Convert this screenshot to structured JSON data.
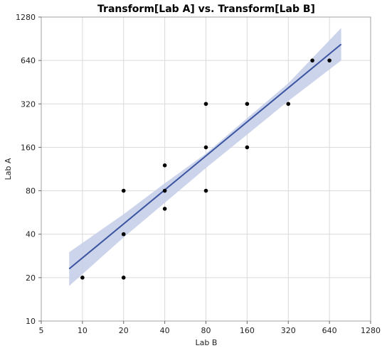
{
  "chart_data": {
    "type": "scatter",
    "title": "Transform[Lab A] vs. Transform[Lab B]",
    "xlabel": "Lab B",
    "ylabel": "Lab A",
    "x_scale": "log2",
    "y_scale": "log2",
    "xlim": [
      5,
      1280
    ],
    "ylim": [
      10,
      1280
    ],
    "x_ticks": [
      5,
      10,
      20,
      40,
      80,
      160,
      320,
      640,
      1280
    ],
    "y_ticks": [
      10,
      20,
      40,
      80,
      160,
      320,
      640,
      1280
    ],
    "grid": true,
    "points": [
      {
        "x": 10,
        "y": 20
      },
      {
        "x": 20,
        "y": 20
      },
      {
        "x": 20,
        "y": 40
      },
      {
        "x": 20,
        "y": 80
      },
      {
        "x": 40,
        "y": 60
      },
      {
        "x": 40,
        "y": 80
      },
      {
        "x": 40,
        "y": 120
      },
      {
        "x": 80,
        "y": 80
      },
      {
        "x": 80,
        "y": 160
      },
      {
        "x": 80,
        "y": 320
      },
      {
        "x": 160,
        "y": 160
      },
      {
        "x": 160,
        "y": 320
      },
      {
        "x": 320,
        "y": 320
      },
      {
        "x": 480,
        "y": 640
      },
      {
        "x": 640,
        "y": 640
      }
    ],
    "fit_line": {
      "x": [
        8,
        780
      ],
      "y": [
        23,
        830
      ]
    },
    "confidence_band": {
      "x": [
        8,
        20,
        40,
        80,
        160,
        320,
        780
      ],
      "lower": [
        17.5,
        38,
        66,
        115,
        196,
        335,
        640
      ],
      "upper": [
        30,
        55,
        90,
        145,
        255,
        445,
        1075
      ]
    },
    "colors": {
      "points": "#000000",
      "fit_line": "#3b54a0",
      "band": "#c7cfe9",
      "grid": "#d9d9d9",
      "frame": "#a0a0a0"
    }
  }
}
